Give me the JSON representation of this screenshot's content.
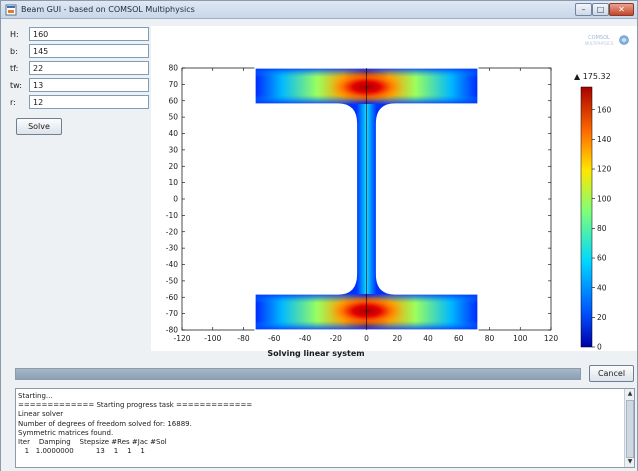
{
  "window": {
    "title": "Beam GUI - based on COMSOL Multiphysics",
    "minimize_glyph": "–",
    "maximize_glyph": "□",
    "close_glyph": "✕"
  },
  "params": [
    {
      "label": "H:",
      "value": "160"
    },
    {
      "label": "b:",
      "value": "145"
    },
    {
      "label": "tf:",
      "value": "22"
    },
    {
      "label": "tw:",
      "value": "13"
    },
    {
      "label": "r:",
      "value": "12"
    }
  ],
  "solve_label": "Solve",
  "cancel_label": "Cancel",
  "status_text": "Solving linear system",
  "progress": 1.0,
  "colorbar": {
    "max_label": "▲ 175.32",
    "min_label": "▼ 0",
    "ticks": [
      "160",
      "140",
      "120",
      "100",
      "80",
      "60",
      "40",
      "20",
      "0"
    ]
  },
  "chart_data": {
    "type": "heatmap",
    "title": "",
    "xlabel": "",
    "ylabel": "",
    "xlim": [
      -120,
      120
    ],
    "ylim": [
      -80,
      80
    ],
    "x_ticks": [
      -120,
      -100,
      -80,
      -60,
      -40,
      -20,
      0,
      20,
      40,
      60,
      80,
      100,
      120
    ],
    "y_ticks": [
      80,
      70,
      60,
      50,
      40,
      30,
      20,
      10,
      0,
      -10,
      -20,
      -30,
      -40,
      -50,
      -60,
      -70,
      -80
    ],
    "color_range": [
      0,
      175.32
    ],
    "colormap": "rainbow",
    "geometry": {
      "H": 160,
      "b": 145,
      "tf": 22,
      "tw": 13,
      "r": 12
    }
  },
  "log_lines": [
    "Starting...",
    "============= Starting progress task =============",
    "Linear solver",
    "Number of degrees of freedom solved for: 16889.",
    "Symmetric matrices found.",
    "Iter    Damping    Stepsize #Res #Jac #Sol",
    "   1   1.0000000          13    1    1    1"
  ],
  "icons": {
    "app": "window-app-icon",
    "logo": "comsol-logo",
    "scroll_up": "▲",
    "scroll_down": "▼"
  }
}
